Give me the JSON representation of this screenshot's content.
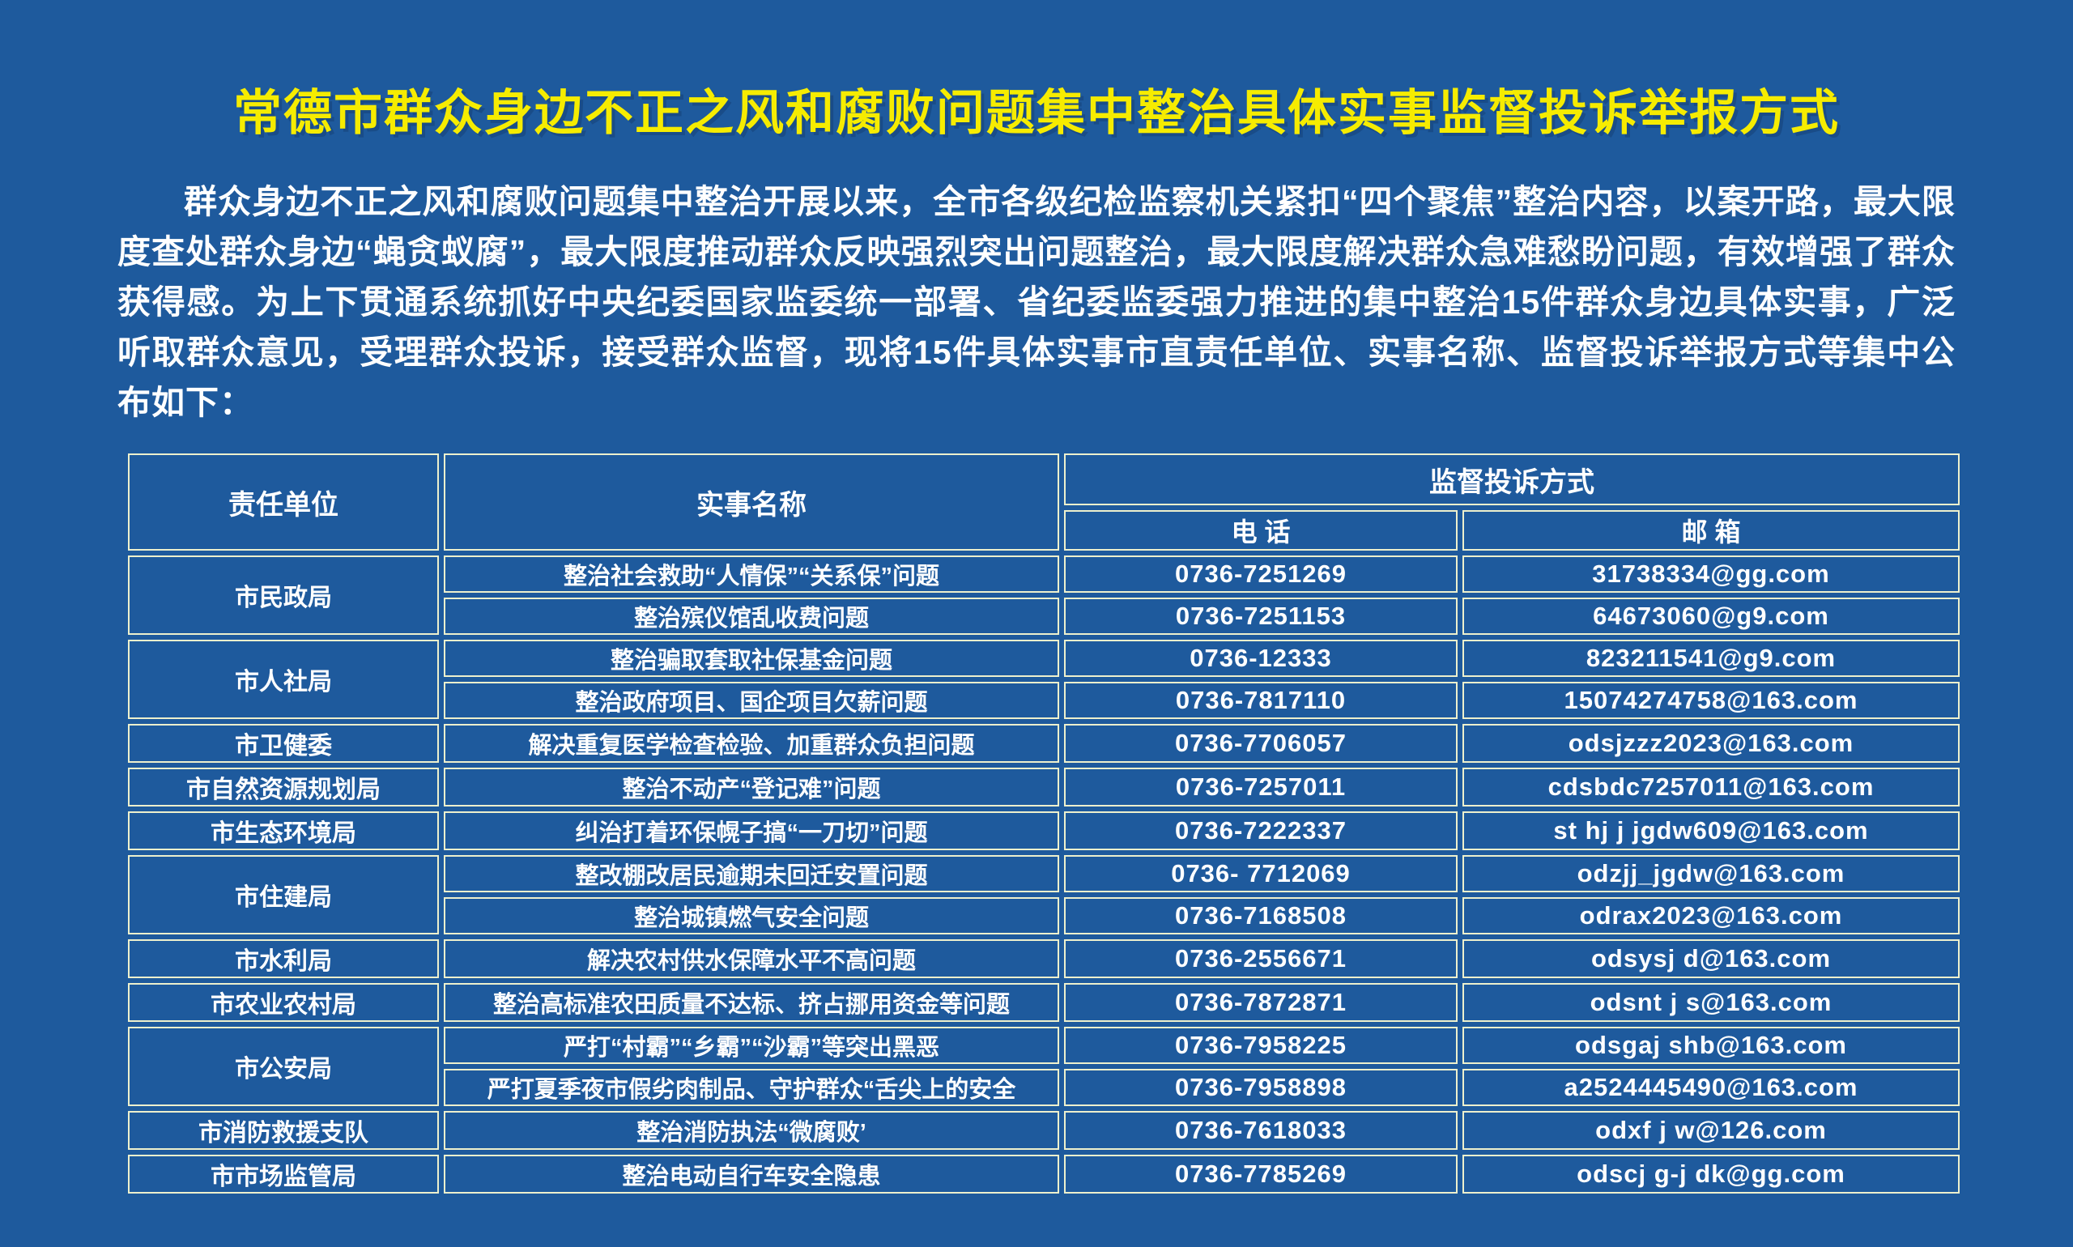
{
  "page": {
    "title": "常德市群众身边不正之风和腐败问题集中整治具体实事监督投诉举报方式",
    "intro": "群众身边不正之风和腐败问题集中整治开展以来，全市各级纪检监察机关紧扣“四个聚焦”整治内容，以案开路，最大限度查处群众身边“蝇贪蚁腐”，最大限度推动群众反映强烈突出问题整治，最大限度解决群众急难愁盼问题，有效增强了群众获得感。为上下贯通系统抓好中央纪委国家监委统一部署、省纪委监委强力推进的集中整治15件群众身边具体实事，广泛听取群众意见，受理群众投诉，接受群众监督，现将15件具体实事市直责任单位、实事名称、监督投诉举报方式等集中公布如下："
  },
  "colors": {
    "background": "#1e5a9d",
    "title_text": "#f6ec00",
    "table_border": "#edf0cd",
    "body_text": "#ffffff"
  },
  "table": {
    "headers": {
      "unit": "责任单位",
      "matter": "实事名称",
      "method": "监督投诉方式",
      "phone": "电 话",
      "email": "邮 箱"
    },
    "groups": [
      {
        "unit": "市民政局",
        "rows": [
          {
            "matter": "整治社会救助“人情保”“关系保”问题",
            "phone": "0736-7251269",
            "email": "31738334@gg.com"
          },
          {
            "matter": "整治殡仪馆乱收费问题",
            "phone": "0736-7251153",
            "email": "64673060@g9.com"
          }
        ]
      },
      {
        "unit": "市人社局",
        "rows": [
          {
            "matter": "整治骗取套取社保基金问题",
            "phone": "0736-12333",
            "email": "823211541@g9.com"
          },
          {
            "matter": "整治政府项目、国企项目欠薪问题",
            "phone": "0736-7817110",
            "email": "15074274758@163.com"
          }
        ]
      },
      {
        "unit": "市卫健委",
        "rows": [
          {
            "matter": "解决重复医学检查检验、加重群众负担问题",
            "phone": "0736-7706057",
            "email": "odsjzzz2023@163.com"
          }
        ]
      },
      {
        "unit": "市自然资源规划局",
        "rows": [
          {
            "matter": "整治不动产“登记难”问题",
            "phone": "0736-7257011",
            "email": "cdsbdc7257011@163.com"
          }
        ]
      },
      {
        "unit": "市生态环境局",
        "rows": [
          {
            "matter": "纠治打着环保幌子搞“一刀切”问题",
            "phone": "0736-7222337",
            "email": "st hj j jgdw609@163.com"
          }
        ]
      },
      {
        "unit": "市住建局",
        "rows": [
          {
            "matter": "整改棚改居民逾期未回迁安置问题",
            "phone": "0736- 7712069",
            "email": "odzjj_jgdw@163.com"
          },
          {
            "matter": "整治城镇燃气安全问题",
            "phone": "0736-7168508",
            "email": "odrax2023@163.com"
          }
        ]
      },
      {
        "unit": "市水利局",
        "rows": [
          {
            "matter": "解决农村供水保障水平不高问题",
            "phone": "0736-2556671",
            "email": "odsysj d@163.com"
          }
        ]
      },
      {
        "unit": "市农业农村局",
        "rows": [
          {
            "matter": "整治高标准农田质量不达标、挤占挪用资金等问题",
            "phone": "0736-7872871",
            "email": "odsnt j s@163.com"
          }
        ]
      },
      {
        "unit": "市公安局",
        "rows": [
          {
            "matter": "严打“村霸”“乡霸”“沙霸”等突出黑恶",
            "phone": "0736-7958225",
            "email": "odsgaj shb@163.com"
          },
          {
            "matter": "严打夏季夜市假劣肉制品、守护群众“舌尖上的安全",
            "phone": "0736-7958898",
            "email": "a2524445490@163.com"
          }
        ]
      },
      {
        "unit": "市消防救援支队",
        "rows": [
          {
            "matter": "整治消防执法“微腐败’",
            "phone": "0736-7618033",
            "email": "odxf j w@126.com"
          }
        ]
      },
      {
        "unit": "市市场监管局",
        "rows": [
          {
            "matter": "整治电动自行车安全隐患",
            "phone": "0736-7785269",
            "email": "odscj g-j dk@gg.com"
          }
        ]
      }
    ]
  }
}
